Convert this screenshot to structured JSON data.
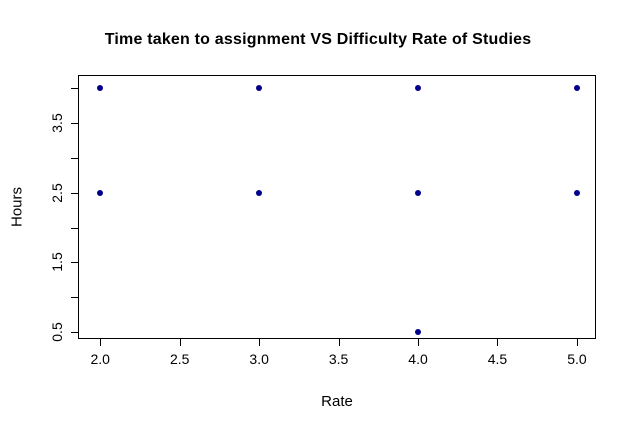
{
  "chart_data": {
    "type": "scatter",
    "title": "Time taken to assignment VS Difficulty Rate of Studies",
    "xlabel": "Rate",
    "ylabel": "Hours",
    "point_color": "#00008B",
    "axis_color": "#000000",
    "background_color": "#ffffff",
    "grid": false,
    "legend": null,
    "x_range": [
      1.86,
      5.12
    ],
    "y_range": [
      0.4,
      4.19
    ],
    "x_ticks": [
      {
        "value": 2.0,
        "label": "2.0"
      },
      {
        "value": 2.5,
        "label": "2.5"
      },
      {
        "value": 3.0,
        "label": "3.0"
      },
      {
        "value": 3.5,
        "label": "3.5"
      },
      {
        "value": 4.0,
        "label": "4.0"
      },
      {
        "value": 4.5,
        "label": "4.5"
      },
      {
        "value": 5.0,
        "label": "5.0"
      }
    ],
    "y_ticks": [
      {
        "value": 0.5,
        "label": "0.5"
      },
      {
        "value": 1.0,
        "label": ""
      },
      {
        "value": 1.5,
        "label": "1.5"
      },
      {
        "value": 2.0,
        "label": ""
      },
      {
        "value": 2.5,
        "label": "2.5"
      },
      {
        "value": 3.0,
        "label": ""
      },
      {
        "value": 3.5,
        "label": "3.5"
      },
      {
        "value": 4.0,
        "label": ""
      }
    ],
    "points": [
      {
        "x": 2.0,
        "y": 4.0
      },
      {
        "x": 3.0,
        "y": 4.0
      },
      {
        "x": 4.0,
        "y": 4.0
      },
      {
        "x": 5.0,
        "y": 4.0
      },
      {
        "x": 2.0,
        "y": 2.5
      },
      {
        "x": 3.0,
        "y": 2.5
      },
      {
        "x": 4.0,
        "y": 2.5
      },
      {
        "x": 5.0,
        "y": 2.5
      },
      {
        "x": 4.0,
        "y": 0.5
      }
    ]
  }
}
